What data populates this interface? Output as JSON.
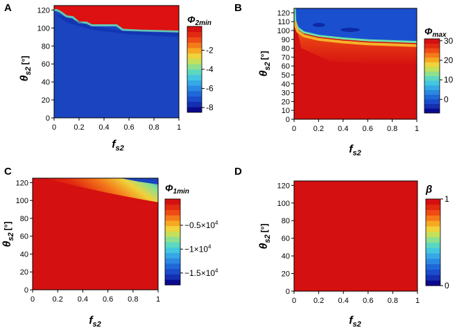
{
  "colors": {
    "red": "#dd1111",
    "blue": "#1a44c0",
    "dark_blue": "#0b1d9a",
    "colormap": [
      "#0a0a8e",
      "#1430b0",
      "#1a4ccc",
      "#1f68d8",
      "#2a88e2",
      "#36a8e6",
      "#44c6e0",
      "#5cd8c0",
      "#8ee08e",
      "#c4e05a",
      "#f0d23a",
      "#f6a823",
      "#f47a1a",
      "#ee4c14",
      "#e22a10",
      "#d41010"
    ]
  },
  "chart_data": [
    {
      "id": "A",
      "panel_label": "A",
      "type": "heatmap",
      "title": "Φ2min",
      "title_base": "Φ",
      "title_sub": "2min",
      "xlabel_base": "f",
      "xlabel_sub": "s2",
      "ylabel_base": "θ",
      "ylabel_sub": "s2",
      "ylabel_unit": "[°]",
      "xlim": [
        0,
        1
      ],
      "ylim": [
        0,
        125
      ],
      "x_ticks": [
        0,
        0.2,
        0.4,
        0.6,
        0.8,
        1
      ],
      "x_tick_labels": [
        "0",
        "0.2",
        "0.4",
        "0.6",
        "0.8",
        "1"
      ],
      "y_ticks": [
        0,
        20,
        40,
        60,
        80,
        100,
        120
      ],
      "y_tick_labels": [
        "0",
        "20",
        "40",
        "60",
        "80",
        "100",
        "120"
      ],
      "regions": [
        {
          "name": "upper region",
          "value": 0,
          "boundary": [
            [
              0.0,
              120
            ],
            [
              0.02,
              120
            ],
            [
              0.05,
              118
            ],
            [
              0.1,
              113
            ],
            [
              0.15,
              112
            ],
            [
              0.2,
              106
            ],
            [
              0.26,
              106
            ],
            [
              0.3,
              103
            ],
            [
              0.5,
              103
            ],
            [
              0.55,
              98
            ],
            [
              0.7,
              97
            ],
            [
              1.0,
              96
            ]
          ]
        },
        {
          "name": "lower region",
          "value": -8
        }
      ],
      "colorbar": {
        "min": -8.5,
        "max": 0.5,
        "ticks": [
          -8,
          -6,
          -4,
          -2
        ],
        "tick_labels": [
          "-8",
          "-6",
          "-4",
          "-2"
        ]
      }
    },
    {
      "id": "B",
      "panel_label": "B",
      "type": "heatmap",
      "title": "Φmax",
      "title_base": "Φ",
      "title_sub": "max",
      "xlabel_base": "f",
      "xlabel_sub": "s2",
      "ylabel_base": "θ",
      "ylabel_sub": "s2",
      "ylabel_unit": "[°]",
      "xlim": [
        0,
        1
      ],
      "ylim": [
        0,
        125
      ],
      "x_ticks": [
        0,
        0.2,
        0.4,
        0.6,
        0.8,
        1
      ],
      "x_tick_labels": [
        "0",
        "0.2",
        "0.4",
        "0.6",
        "0.8",
        "1"
      ],
      "y_ticks": [
        0,
        10,
        20,
        30,
        40,
        50,
        60,
        70,
        80,
        90,
        100,
        110,
        120
      ],
      "y_tick_labels": [
        "0",
        "10",
        "20",
        "30",
        "40",
        "50",
        "60",
        "70",
        "80",
        "90",
        "100",
        "110",
        "120"
      ],
      "regions": [
        {
          "name": "upper region",
          "value": -5,
          "boundary": [
            [
              0.005,
              125
            ],
            [
              0.01,
              110
            ],
            [
              0.03,
              103
            ],
            [
              0.08,
              98
            ],
            [
              0.2,
              94
            ],
            [
              0.4,
              91
            ],
            [
              0.6,
              89
            ],
            [
              0.8,
              88
            ],
            [
              1.0,
              87
            ]
          ]
        },
        {
          "name": "lower region",
          "value": 30
        }
      ],
      "colorbar": {
        "min": -7,
        "max": 31,
        "ticks": [
          0,
          10,
          20,
          30
        ],
        "tick_labels": [
          "0",
          "10",
          "20",
          "30"
        ]
      }
    },
    {
      "id": "C",
      "panel_label": "C",
      "type": "heatmap",
      "title": "Φ1min",
      "title_base": "Φ",
      "title_sub": "1min",
      "xlabel_base": "f",
      "xlabel_sub": "s2",
      "ylabel_base": "θ",
      "ylabel_sub": "s2",
      "ylabel_unit": "[°]",
      "xlim": [
        0,
        1
      ],
      "ylim": [
        0,
        125
      ],
      "x_ticks": [
        0,
        0.2,
        0.4,
        0.6,
        0.8,
        1
      ],
      "x_tick_labels": [
        "0",
        "0.2",
        "0.4",
        "0.6",
        "0.8",
        "1"
      ],
      "y_ticks": [
        0,
        20,
        40,
        60,
        80,
        100,
        120
      ],
      "y_tick_labels": [
        "0",
        "20",
        "40",
        "60",
        "80",
        "100",
        "120"
      ],
      "regions": [
        {
          "name": "blue corner",
          "value": -17000,
          "boundary": [
            [
              0.7,
              125
            ],
            [
              0.85,
              121
            ],
            [
              1.0,
              118
            ]
          ]
        },
        {
          "name": "background",
          "value": 0
        }
      ],
      "colorbar": {
        "min": -17500,
        "max": 500,
        "ticks": [
          -5000,
          -10000,
          -15000
        ],
        "tick_labels": [
          "−0.5×10",
          "−1×10",
          "−1.5×10"
        ],
        "tick_exponent": "4"
      }
    },
    {
      "id": "D",
      "panel_label": "D",
      "type": "heatmap",
      "title": "β",
      "xlabel_base": "f",
      "xlabel_sub": "s2",
      "ylabel_base": "θ",
      "ylabel_sub": "s2",
      "ylabel_unit": "[°]",
      "xlim": [
        0,
        1
      ],
      "ylim": [
        0,
        125
      ],
      "x_ticks": [
        0,
        0.2,
        0.4,
        0.6,
        0.8,
        1
      ],
      "x_tick_labels": [
        "0",
        "0.2",
        "0.4",
        "0.6",
        "0.8",
        "1"
      ],
      "y_ticks": [
        0,
        20,
        40,
        60,
        80,
        100,
        120
      ],
      "y_tick_labels": [
        "0",
        "20",
        "40",
        "60",
        "80",
        "100",
        "120"
      ],
      "regions": [
        {
          "name": "whole domain",
          "value": 1
        }
      ],
      "colorbar": {
        "min": 0,
        "max": 1,
        "ticks": [
          0,
          1
        ],
        "tick_labels": [
          "0",
          "1"
        ]
      }
    }
  ]
}
